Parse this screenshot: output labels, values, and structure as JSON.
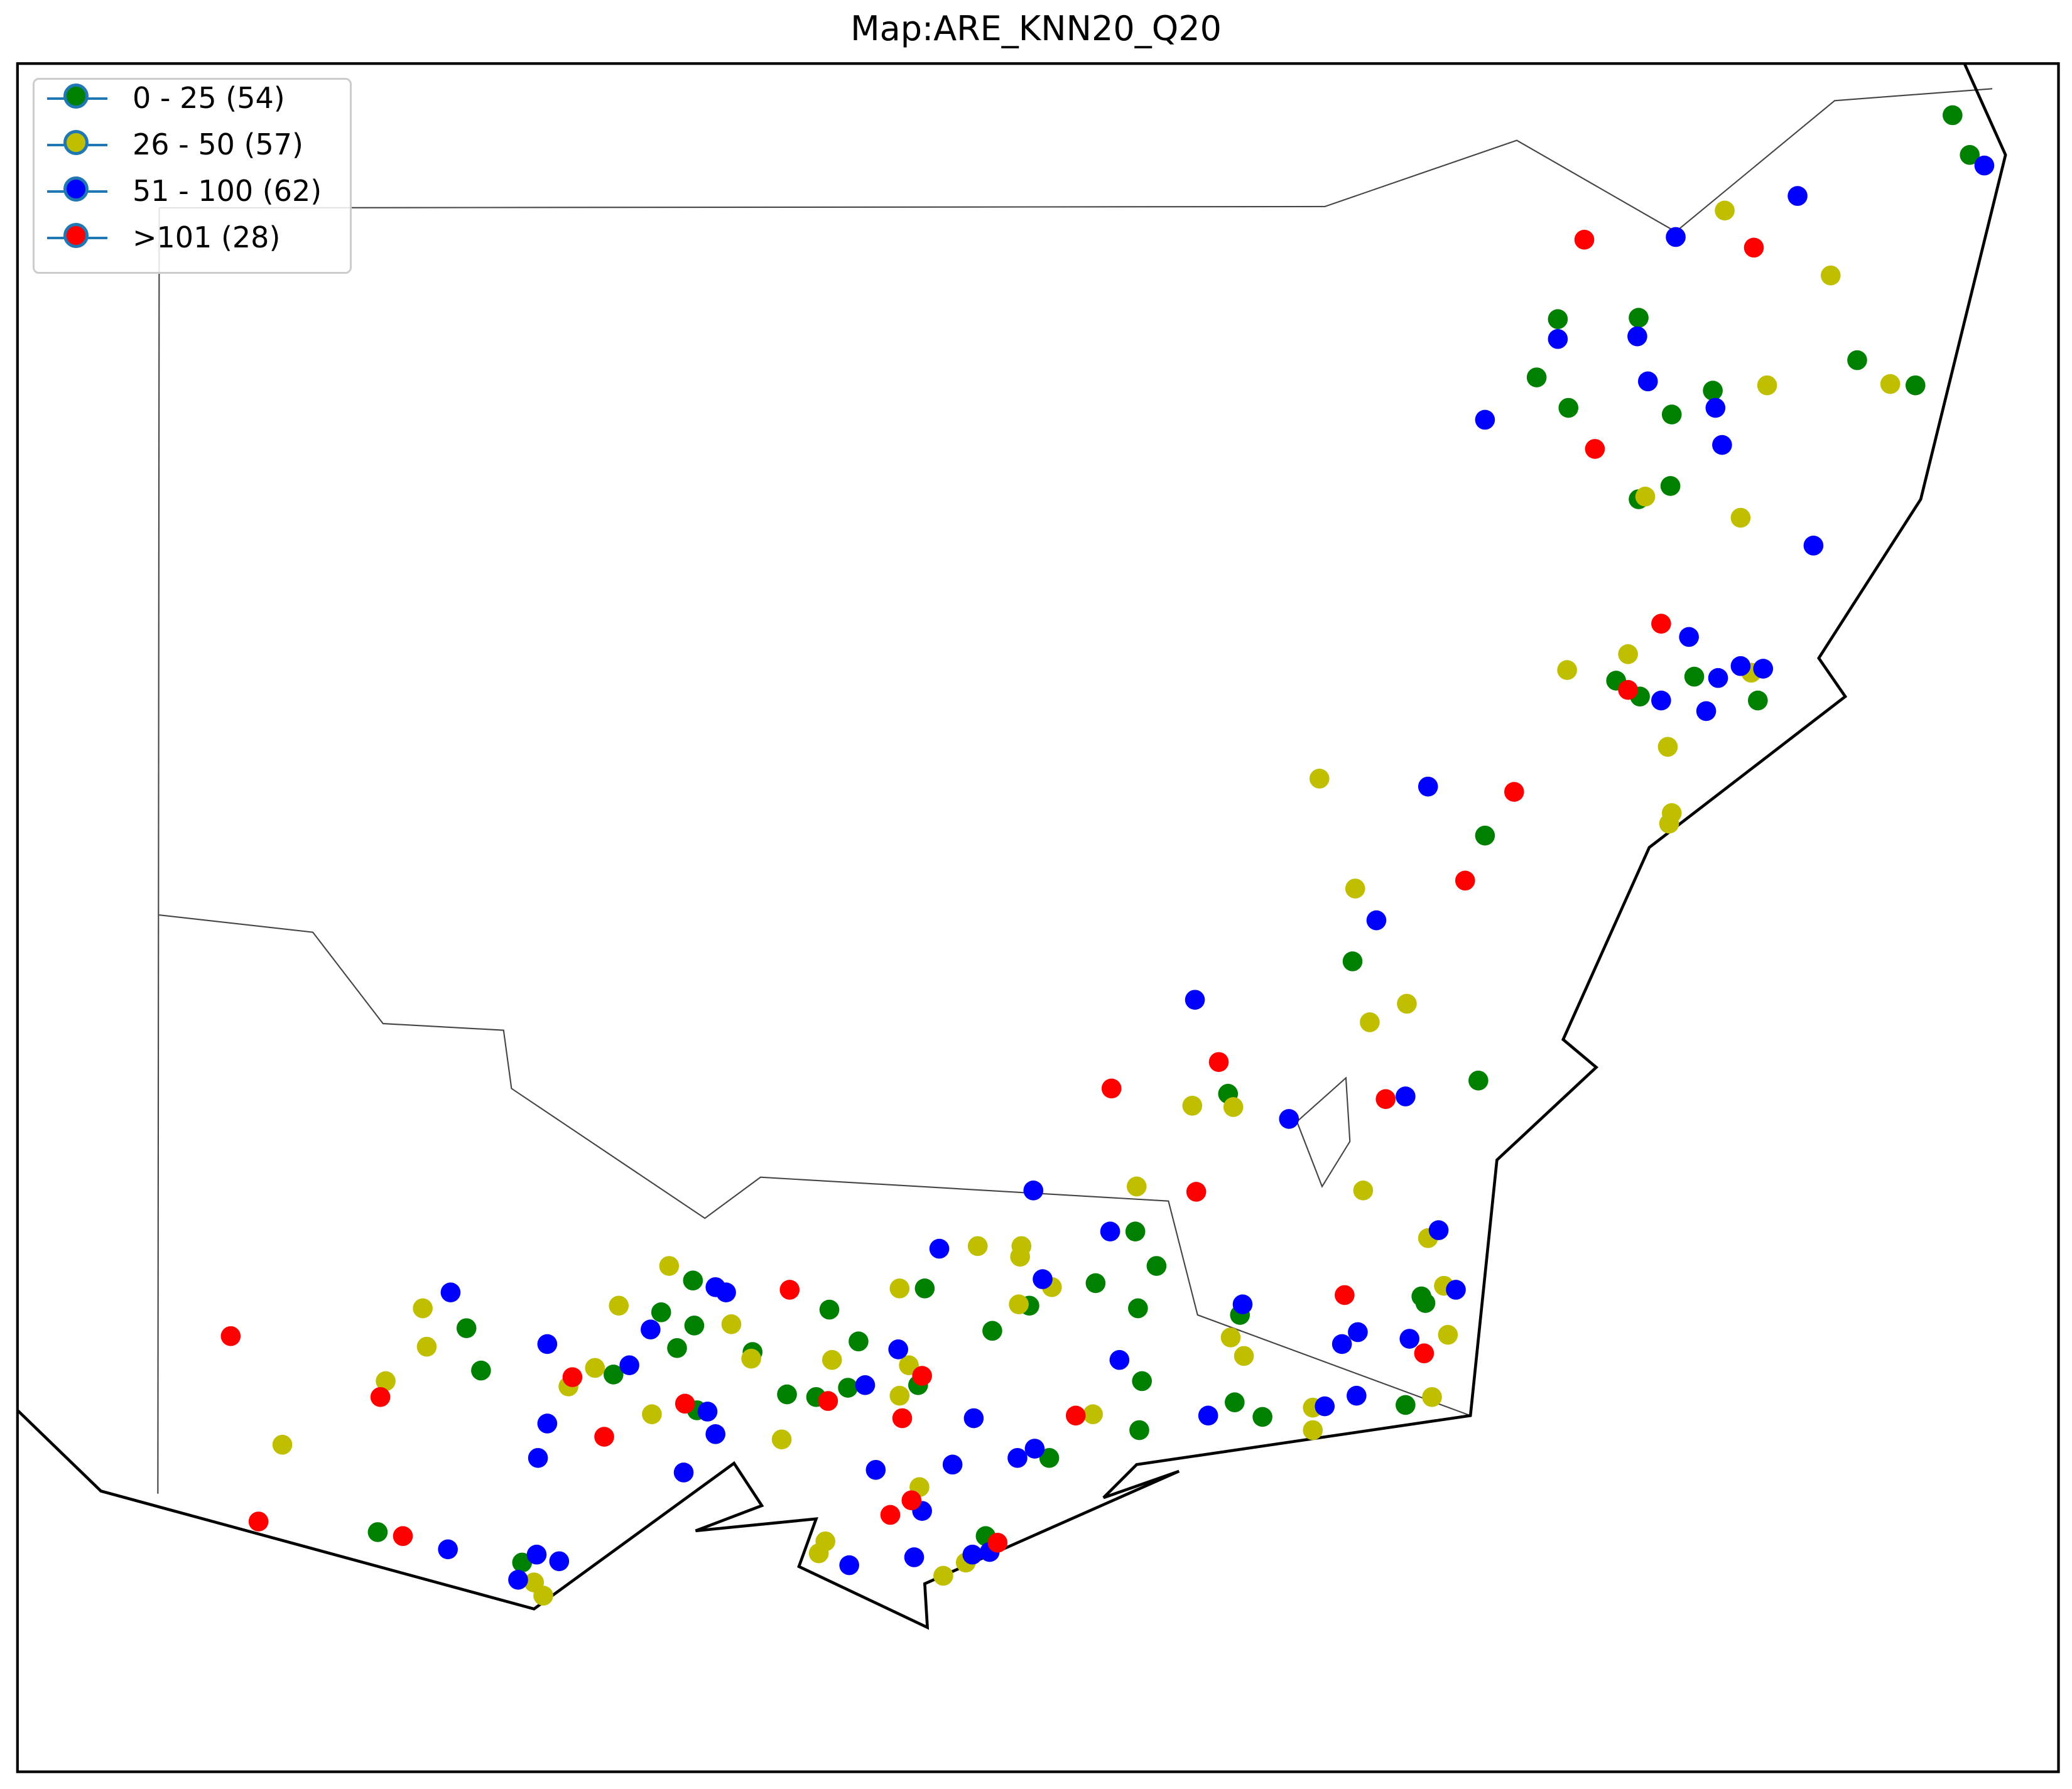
{
  "title": "Map:ARE_KNN20_Q20",
  "legend": {
    "items": [
      {
        "label": "0 - 25 (54)",
        "color": "#008000"
      },
      {
        "label": "26 - 50 (57)",
        "color": "#bfbf00"
      },
      {
        "label": "51 - 100 (62)",
        "color": "#0000ff"
      },
      {
        "label": ">101 (28)",
        "color": "#ff0000"
      }
    ]
  },
  "markers": {
    "green": [
      [
        1474,
        87
      ],
      [
        1487,
        117
      ],
      [
        1176,
        241
      ],
      [
        1237,
        240
      ],
      [
        1160,
        285
      ],
      [
        1184,
        308
      ],
      [
        1293,
        295
      ],
      [
        1262,
        313
      ],
      [
        1402,
        272
      ],
      [
        1446,
        291
      ],
      [
        1237,
        377
      ],
      [
        1261,
        367
      ],
      [
        1220,
        514
      ],
      [
        1238,
        526
      ],
      [
        1279,
        511
      ],
      [
        1327,
        529
      ],
      [
        1121,
        631
      ],
      [
        1021,
        726
      ],
      [
        1116,
        816
      ],
      [
        927,
        826
      ],
      [
        857,
        930
      ],
      [
        873,
        956
      ],
      [
        827,
        969
      ],
      [
        698,
        973
      ],
      [
        749,
        1005
      ],
      [
        626,
        989
      ],
      [
        648,
        1013
      ],
      [
        568,
        1021
      ],
      [
        640,
        1048
      ],
      [
        616,
        1055
      ],
      [
        594,
        1053
      ],
      [
        693,
        1046
      ],
      [
        777,
        986
      ],
      [
        859,
        988
      ],
      [
        862,
        1043
      ],
      [
        860,
        1080
      ],
      [
        936,
        993
      ],
      [
        932,
        1059
      ],
      [
        953,
        1070
      ],
      [
        1061,
        1061
      ],
      [
        1076,
        984
      ],
      [
        1073,
        979
      ],
      [
        792,
        1101
      ],
      [
        744,
        1160
      ],
      [
        523,
        967
      ],
      [
        499,
        991
      ],
      [
        524,
        1001
      ],
      [
        511,
        1018
      ],
      [
        463,
        1038
      ],
      [
        526,
        1065
      ],
      [
        352,
        1003
      ],
      [
        363,
        1035
      ],
      [
        285,
        1157
      ],
      [
        394,
        1180
      ]
    ],
    "yellow": [
      [
        1302,
        159
      ],
      [
        1382,
        208
      ],
      [
        1334,
        291
      ],
      [
        1427,
        290
      ],
      [
        1242,
        375
      ],
      [
        1314,
        391
      ],
      [
        1183,
        506
      ],
      [
        1229,
        494
      ],
      [
        1322,
        508
      ],
      [
        1259,
        564
      ],
      [
        1262,
        614
      ],
      [
        1260,
        622
      ],
      [
        996,
        588
      ],
      [
        1023,
        671
      ],
      [
        1034,
        772
      ],
      [
        1062,
        758
      ],
      [
        900,
        835
      ],
      [
        931,
        836
      ],
      [
        1029,
        899
      ],
      [
        858,
        896
      ],
      [
        738,
        941
      ],
      [
        771,
        941
      ],
      [
        770,
        949
      ],
      [
        679,
        973
      ],
      [
        794,
        972
      ],
      [
        769,
        985
      ],
      [
        1078,
        935
      ],
      [
        1090,
        971
      ],
      [
        1093,
        1008
      ],
      [
        929,
        1010
      ],
      [
        939,
        1024
      ],
      [
        991,
        1063
      ],
      [
        991,
        1080
      ],
      [
        1081,
        1055
      ],
      [
        825,
        1068
      ],
      [
        628,
        1027
      ],
      [
        686,
        1031
      ],
      [
        679,
        1054
      ],
      [
        694,
        1123
      ],
      [
        623,
        1164
      ],
      [
        618,
        1173
      ],
      [
        712,
        1190
      ],
      [
        729,
        1180
      ],
      [
        590,
        1087
      ],
      [
        492,
        1068
      ],
      [
        567,
        1026
      ],
      [
        552,
        1000
      ],
      [
        505,
        956
      ],
      [
        467,
        986
      ],
      [
        449,
        1033
      ],
      [
        429,
        1047
      ],
      [
        319,
        988
      ],
      [
        322,
        1017
      ],
      [
        291,
        1043
      ],
      [
        213,
        1091
      ],
      [
        403,
        1195
      ],
      [
        410,
        1205
      ]
    ],
    "blue": [
      [
        1498,
        125
      ],
      [
        1357,
        148
      ],
      [
        1265,
        179
      ],
      [
        1176,
        256
      ],
      [
        1236,
        254
      ],
      [
        1244,
        288
      ],
      [
        1295,
        308
      ],
      [
        1300,
        336
      ],
      [
        1121,
        317
      ],
      [
        1369,
        412
      ],
      [
        1275,
        481
      ],
      [
        1297,
        512
      ],
      [
        1314,
        503
      ],
      [
        1331,
        505
      ],
      [
        1254,
        529
      ],
      [
        1288,
        537
      ],
      [
        1078,
        594
      ],
      [
        1039,
        695
      ],
      [
        902,
        755
      ],
      [
        1061,
        828
      ],
      [
        973,
        845
      ],
      [
        1086,
        929
      ],
      [
        1099,
        974
      ],
      [
        1025,
        1006
      ],
      [
        1013,
        1015
      ],
      [
        1064,
        1011
      ],
      [
        1024,
        1054
      ],
      [
        1000,
        1062
      ],
      [
        912,
        1069
      ],
      [
        938,
        985
      ],
      [
        845,
        1027
      ],
      [
        838,
        930
      ],
      [
        780,
        899
      ],
      [
        787,
        966
      ],
      [
        709,
        943
      ],
      [
        678,
        1019
      ],
      [
        653,
        1046
      ],
      [
        735,
        1071
      ],
      [
        719,
        1106
      ],
      [
        768,
        1101
      ],
      [
        781,
        1094
      ],
      [
        661,
        1110
      ],
      [
        696,
        1141
      ],
      [
        690,
        1176
      ],
      [
        641,
        1182
      ],
      [
        734,
        1174
      ],
      [
        747,
        1172
      ],
      [
        540,
        972
      ],
      [
        548,
        976
      ],
      [
        491,
        1004
      ],
      [
        475,
        1031
      ],
      [
        534,
        1066
      ],
      [
        540,
        1083
      ],
      [
        516,
        1112
      ],
      [
        413,
        1015
      ],
      [
        413,
        1075
      ],
      [
        406,
        1101
      ],
      [
        340,
        976
      ],
      [
        338,
        1170
      ],
      [
        405,
        1174
      ],
      [
        391,
        1193
      ],
      [
        422,
        1179
      ]
    ],
    "red": [
      [
        1196,
        181
      ],
      [
        1324,
        187
      ],
      [
        1204,
        339
      ],
      [
        1254,
        471
      ],
      [
        1229,
        521
      ],
      [
        1143,
        598
      ],
      [
        1106,
        665
      ],
      [
        920,
        802
      ],
      [
        839,
        822
      ],
      [
        1046,
        830
      ],
      [
        903,
        900
      ],
      [
        1015,
        978
      ],
      [
        1075,
        1022
      ],
      [
        812,
        1069
      ],
      [
        696,
        1039
      ],
      [
        681,
        1071
      ],
      [
        625,
        1058
      ],
      [
        688,
        1133
      ],
      [
        672,
        1144
      ],
      [
        753,
        1165
      ],
      [
        596,
        974
      ],
      [
        517,
        1060
      ],
      [
        456,
        1085
      ],
      [
        432,
        1040
      ],
      [
        287,
        1055
      ],
      [
        174,
        1009
      ],
      [
        195,
        1149
      ],
      [
        304,
        1160
      ]
    ]
  }
}
